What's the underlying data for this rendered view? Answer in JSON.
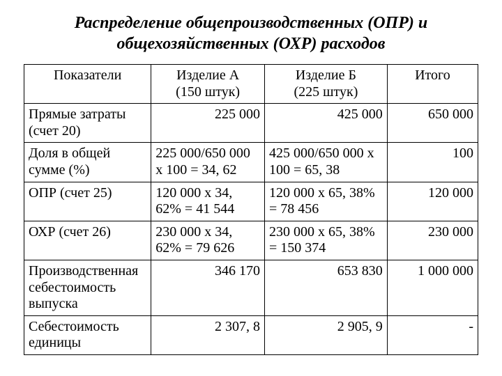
{
  "title_line1": "Распределение общепроизводственных (ОПР) и",
  "title_line2": "общехозяйственных (ОХР) расходов",
  "headers": {
    "col0": "Показатели",
    "col1_line1": "Изделие А",
    "col1_line2": "(150 штук)",
    "col2_line1": "Изделие Б",
    "col2_line2": "(225 штук)",
    "col3": "Итого"
  },
  "rows": [
    {
      "label": "Прямые затраты (счет 20)",
      "a": "225 000",
      "b": "425 000",
      "total": "650 000",
      "a_align": "right",
      "b_align": "right"
    },
    {
      "label": "Доля в общей сумме (%)",
      "a": "225 000/650 000 х 100 = 34, 62",
      "b": "425 000/650 000 х 100 = 65, 38",
      "total": "100",
      "a_align": "left",
      "b_align": "left"
    },
    {
      "label": "ОПР (счет 25)",
      "a": "120 000 х 34, 62% = 41 544",
      "b": "120 000 х 65, 38% = 78 456",
      "total": "120 000",
      "a_align": "left",
      "b_align": "left"
    },
    {
      "label": "ОХР (счет 26)",
      "a": "230 000 х 34, 62% = 79 626",
      "b": "230 000 х 65, 38% = 150 374",
      "total": "230 000",
      "a_align": "left",
      "b_align": "left"
    },
    {
      "label": "Производственная себестоимость выпуска",
      "a": "346 170",
      "b": "653 830",
      "total": "1 000 000",
      "a_align": "right",
      "b_align": "right"
    },
    {
      "label": "Себестоимость единицы",
      "a": "2 307, 8",
      "b": "2 905, 9",
      "total": "-",
      "a_align": "right",
      "b_align": "right"
    }
  ]
}
